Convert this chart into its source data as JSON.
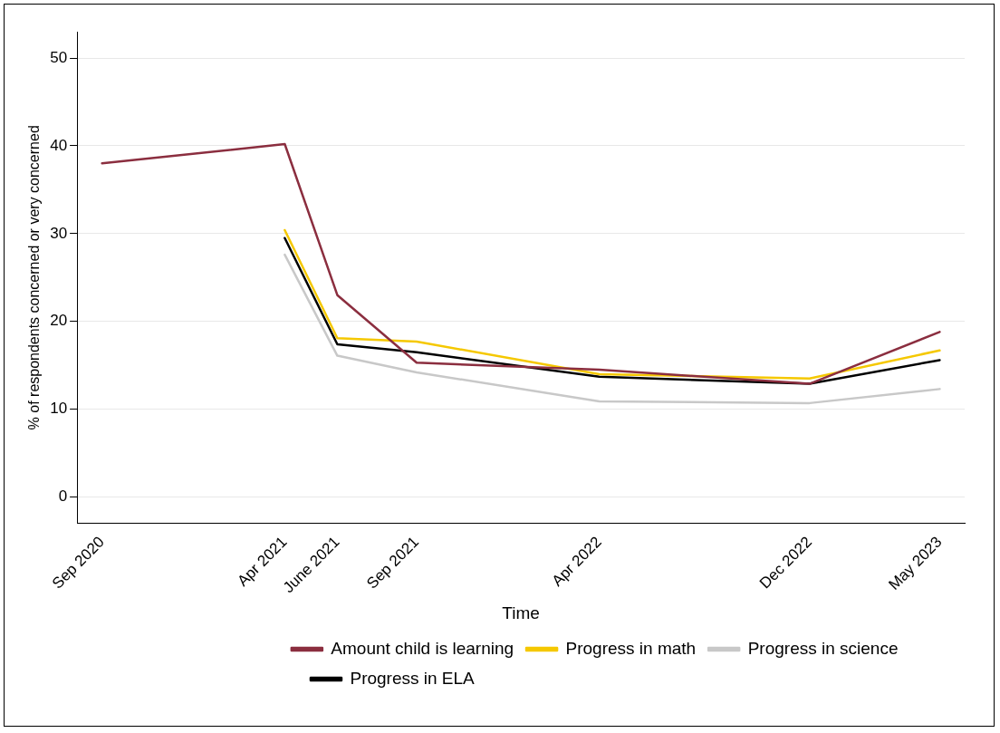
{
  "chart_data": {
    "type": "line",
    "xlabel": "Time",
    "ylabel": "% of respondents concerned or very concerned",
    "x": [
      "2020-09",
      "2021-04",
      "2021-06",
      "2021-09",
      "2022-04",
      "2022-12",
      "2023-05"
    ],
    "series": [
      {
        "name": "Amount child is learning",
        "color": "#8b2e3f",
        "values": [
          38.0,
          40.2,
          23.0,
          15.3,
          14.5,
          12.9,
          18.8
        ]
      },
      {
        "name": "Progress in math",
        "color": "#f5c800",
        "values": [
          null,
          30.4,
          18.1,
          17.7,
          14.0,
          13.5,
          16.7
        ]
      },
      {
        "name": "Progress in science",
        "color": "#c8c8c8",
        "values": [
          null,
          27.6,
          16.1,
          14.2,
          10.9,
          10.7,
          12.3
        ]
      },
      {
        "name": "Progress in ELA",
        "color": "#000000",
        "values": [
          null,
          29.5,
          17.4,
          16.5,
          13.7,
          12.9,
          15.6
        ]
      }
    ],
    "xlim": [
      "2020-08-03",
      "2023-05-30"
    ],
    "xticks": [
      {
        "value": "2020-09",
        "label": "Sep 2020"
      },
      {
        "value": "2021-04",
        "label": "Apr 2021"
      },
      {
        "value": "2021-06",
        "label": "June 2021"
      },
      {
        "value": "2021-09",
        "label": "Sep 2021"
      },
      {
        "value": "2022-04",
        "label": "Apr 2022"
      },
      {
        "value": "2022-12",
        "label": "Dec 2022"
      },
      {
        "value": "2023-05",
        "label": "May 2023"
      }
    ],
    "ylim": [
      -3,
      53
    ],
    "yticks": [
      0,
      10,
      20,
      30,
      40,
      50
    ],
    "grid": "y",
    "legend": "bottom",
    "marker": "none",
    "line_style": "solid"
  }
}
